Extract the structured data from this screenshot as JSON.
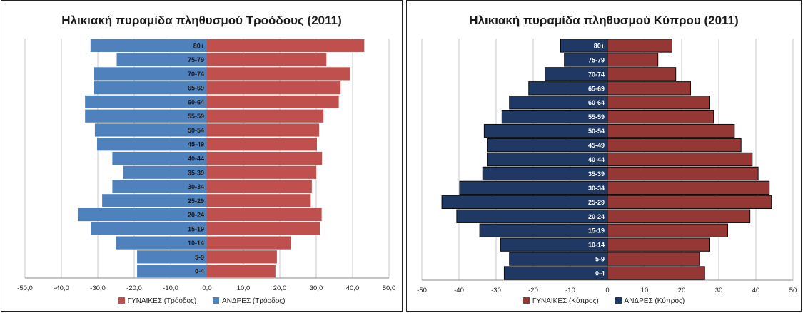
{
  "chart_data": [
    {
      "type": "bar",
      "orientation": "horizontal",
      "title": "Ηλικιακή πυραμίδα πληθυσμού Τροόδους (2011)",
      "categories": [
        "0-4",
        "5-9",
        "10-14",
        "15-19",
        "20-24",
        "25-29",
        "30-34",
        "35-39",
        "40-44",
        "45-49",
        "50-54",
        "55-59",
        "60-64",
        "65-69",
        "70-74",
        "75-79",
        "80+"
      ],
      "series": [
        {
          "name": "ΓΥΝΑΙΚΕΣ (Τρόοδος)",
          "color": "#c0504d",
          "values": [
            18.8,
            19.2,
            23.0,
            31.0,
            31.5,
            28.5,
            28.8,
            30.0,
            31.6,
            30.2,
            30.8,
            32.0,
            36.2,
            36.7,
            39.3,
            32.8,
            43.2
          ]
        },
        {
          "name": "ΑΝΔΡΕΣ (Τρόοδος)",
          "color": "#4f81bd",
          "values": [
            -19.2,
            -19.2,
            -25.0,
            -31.8,
            -35.5,
            -28.8,
            -26.0,
            -23.0,
            -26.0,
            -30.2,
            -30.8,
            -33.5,
            -33.5,
            -31.0,
            -31.0,
            -24.8,
            -32.0
          ]
        }
      ],
      "xlim": [
        -50,
        50
      ],
      "xticks": [
        "-50,0",
        "-40,0",
        "-30,0",
        "-20,0",
        "-10,0",
        "0,0",
        "10,0",
        "20,0",
        "30,0",
        "40,0",
        "50,0"
      ],
      "grid": true,
      "legend": "bottom"
    },
    {
      "type": "bar",
      "orientation": "horizontal",
      "title": "Ηλικιακή πυραμίδα πληθυσμού Κύπρου (2011)",
      "categories": [
        "0-4",
        "5-9",
        "10-14",
        "15-19",
        "20-24",
        "25-29",
        "30-34",
        "35-39",
        "40-44",
        "45-49",
        "50-54",
        "55-59",
        "60-64",
        "65-69",
        "70-74",
        "75-79",
        "80+"
      ],
      "series": [
        {
          "name": "ΓΥΝΑΙΚΕΣ (Κύπρος)",
          "color": "#953735",
          "values": [
            26.2,
            24.8,
            27.6,
            32.4,
            38.4,
            44.2,
            43.6,
            40.6,
            39.0,
            36.0,
            34.2,
            28.6,
            27.6,
            22.4,
            18.4,
            13.6,
            17.4
          ]
        },
        {
          "name": "ΑΝΔΡΕΣ (Κύπρος)",
          "color": "#1f3864",
          "values": [
            -27.8,
            -26.4,
            -28.8,
            -34.4,
            -40.6,
            -44.6,
            -39.8,
            -33.6,
            -32.4,
            -32.4,
            -33.2,
            -28.4,
            -26.4,
            -21.2,
            -16.8,
            -11.6,
            -12.6
          ]
        }
      ],
      "xlim": [
        -50,
        50
      ],
      "xticks": [
        "-50",
        "-40",
        "-30",
        "-20",
        "-10",
        "0",
        "10",
        "20",
        "30",
        "40",
        "50"
      ],
      "grid": true,
      "legend": "bottom"
    }
  ]
}
